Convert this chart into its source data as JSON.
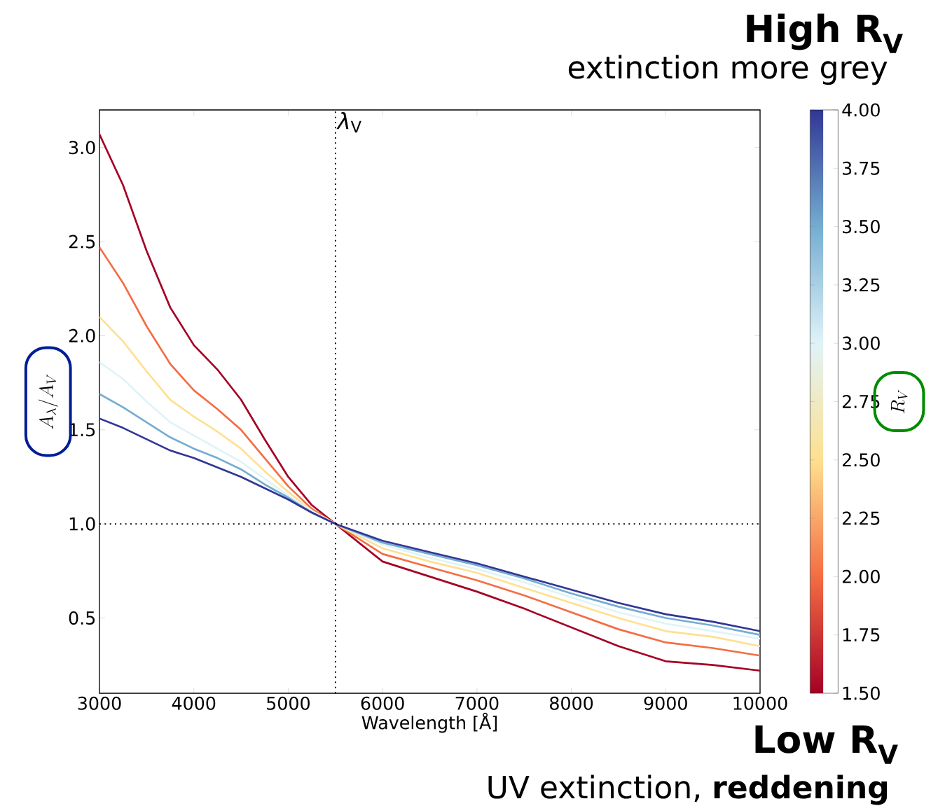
{
  "chart_data": {
    "type": "line",
    "annotations": [
      "High R$_{V}$",
      "extinction more grey",
      "Low R$_{V}$",
      "UV extinction, **reddening**"
    ],
    "xlabel": "Wavelength [Å]",
    "ylabel": "A_{\\lambda}/A_{V}",
    "clabel": "R_{V}",
    "x": [
      3000,
      3250,
      3500,
      3750,
      4000,
      4250,
      4500,
      4750,
      5000,
      5250,
      5500,
      6000,
      6500,
      7000,
      7500,
      8000,
      8500,
      9000,
      9500,
      10000
    ],
    "series": [
      {
        "color": "#a50026",
        "values": [
          3.07,
          2.8,
          2.45,
          2.15,
          1.95,
          1.82,
          1.66,
          1.45,
          1.25,
          1.1,
          1.0,
          0.8,
          0.72,
          0.64,
          0.55,
          0.45,
          0.35,
          0.27,
          0.25,
          0.22
        ]
      },
      {
        "color": "#f46d43",
        "values": [
          2.47,
          2.28,
          2.05,
          1.85,
          1.71,
          1.61,
          1.5,
          1.35,
          1.2,
          1.08,
          1.0,
          0.84,
          0.77,
          0.7,
          0.62,
          0.53,
          0.44,
          0.37,
          0.34,
          0.3
        ]
      },
      {
        "color": "#fee090",
        "values": [
          2.1,
          1.97,
          1.81,
          1.66,
          1.57,
          1.49,
          1.4,
          1.28,
          1.17,
          1.07,
          1.0,
          0.87,
          0.8,
          0.74,
          0.66,
          0.58,
          0.5,
          0.43,
          0.4,
          0.35
        ]
      },
      {
        "color": "#e0f3f8",
        "values": [
          1.86,
          1.77,
          1.65,
          1.54,
          1.47,
          1.4,
          1.33,
          1.24,
          1.15,
          1.07,
          1.0,
          0.89,
          0.82,
          0.76,
          0.69,
          0.61,
          0.53,
          0.47,
          0.43,
          0.39
        ]
      },
      {
        "color": "#74add1",
        "values": [
          1.69,
          1.62,
          1.54,
          1.46,
          1.4,
          1.35,
          1.29,
          1.21,
          1.14,
          1.06,
          1.0,
          0.9,
          0.84,
          0.78,
          0.71,
          0.63,
          0.56,
          0.5,
          0.46,
          0.41
        ]
      },
      {
        "color": "#313695",
        "values": [
          1.56,
          1.51,
          1.45,
          1.39,
          1.35,
          1.3,
          1.25,
          1.19,
          1.13,
          1.06,
          1.0,
          0.91,
          0.85,
          0.79,
          0.72,
          0.65,
          0.58,
          0.52,
          0.48,
          0.43
        ]
      }
    ],
    "xlim": [
      3000,
      10000
    ],
    "ylim": [
      0.1,
      3.2
    ],
    "xticks": [
      3000,
      4000,
      5000,
      6000,
      7000,
      8000,
      9000,
      10000
    ],
    "yticks": [
      {
        "value": 0.5,
        "label": "0.5"
      },
      {
        "value": 1.0,
        "label": "1.0"
      },
      {
        "value": 1.5,
        "label": "1.5"
      },
      {
        "value": 2.0,
        "label": "2.0"
      },
      {
        "value": 2.5,
        "label": "2.5"
      },
      {
        "value": 3.0,
        "label": "3.0"
      }
    ],
    "clim": [
      1.5,
      4.0
    ],
    "cticks": [
      {
        "value": 1.5,
        "label": "1.50"
      },
      {
        "value": 1.75,
        "label": "1.75"
      },
      {
        "value": 2.0,
        "label": "2.00"
      },
      {
        "value": 2.25,
        "label": "2.25"
      },
      {
        "value": 2.5,
        "label": "2.50"
      },
      {
        "value": 2.75,
        "label": "2.75"
      },
      {
        "value": 3.0,
        "label": "3.00"
      },
      {
        "value": 3.25,
        "label": "3.25"
      },
      {
        "value": 3.5,
        "label": "3.50"
      },
      {
        "value": 3.75,
        "label": "3.75"
      },
      {
        "value": 4.0,
        "label": "4.00"
      }
    ],
    "ref_lines": [
      {
        "axis": "x",
        "value": 5500,
        "label": "*λ*$_{V}$",
        "color": "#000000",
        "line_style": "dotted"
      },
      {
        "axis": "y",
        "value": 1.0,
        "color": "#000000",
        "line_style": "dotted"
      }
    ]
  }
}
